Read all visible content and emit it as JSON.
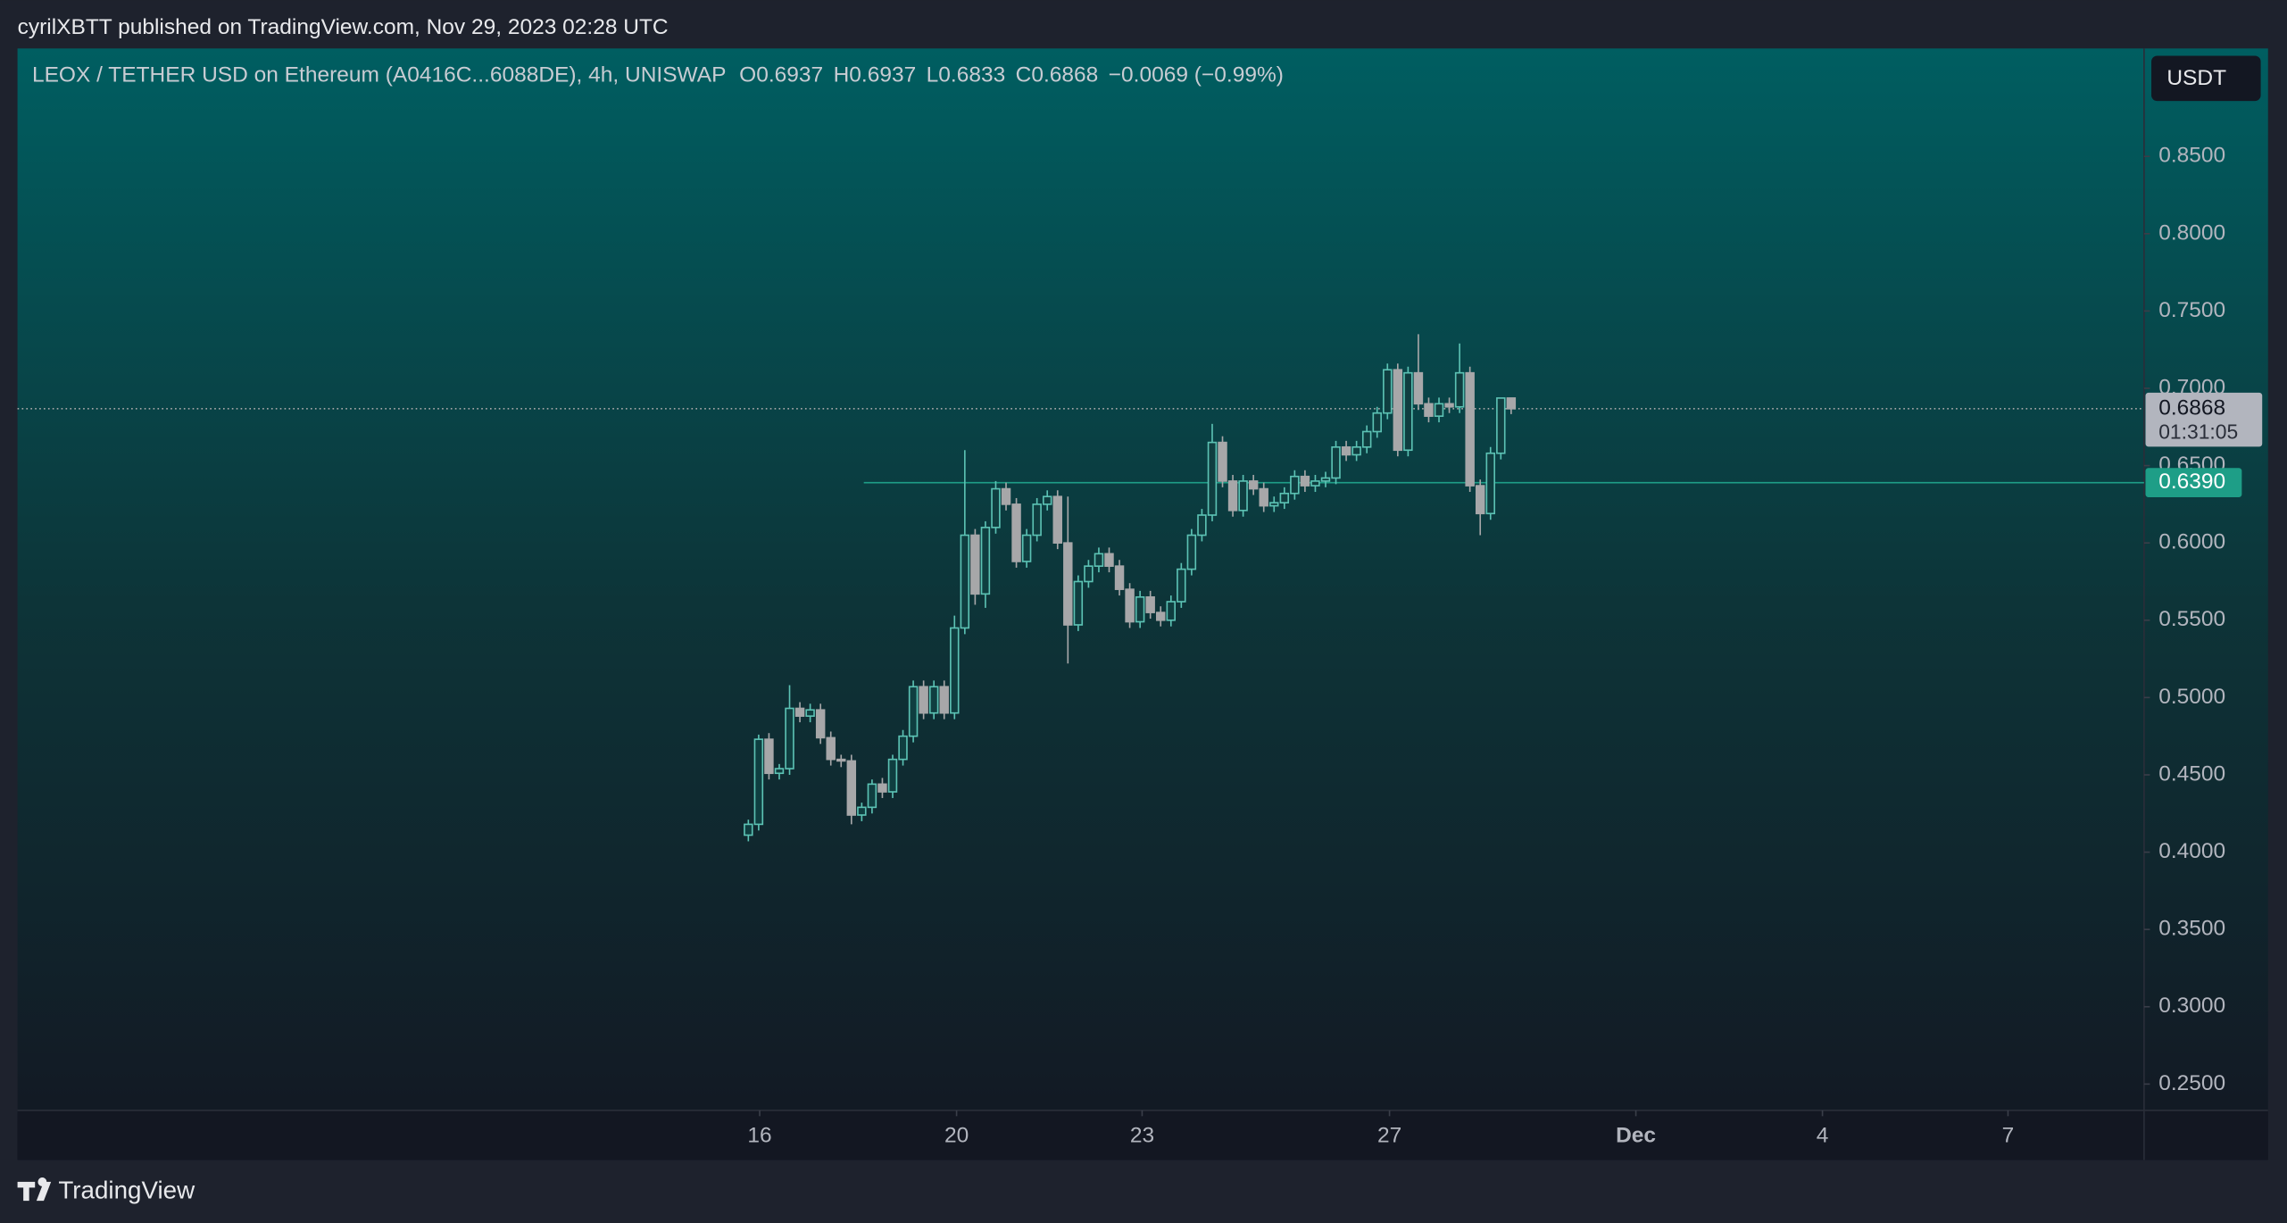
{
  "header": {
    "published": "cyrilXBTT published on TradingView.com, Nov 29, 2023 02:28 UTC",
    "brand": "TradingView"
  },
  "chart_data": {
    "type": "candlestick",
    "title": "LEOX / TETHER USD on Ethereum (A0416C...6088DE), 4h, UNISWAP",
    "ohlc_legend": [
      {
        "key": "O",
        "value": "0.6937"
      },
      {
        "key": "H",
        "value": "0.6937"
      },
      {
        "key": "L",
        "value": "0.6833"
      },
      {
        "key": "C",
        "value": "0.6868"
      }
    ],
    "change": "−0.0069 (−0.99%)",
    "currency": "USDT",
    "up_color": "#5cc2b4",
    "down_color": "#a7a7a9",
    "categories": [
      null,
      null,
      null,
      null,
      null,
      null,
      null,
      null,
      null,
      null,
      null,
      null,
      null,
      null,
      null,
      null,
      null,
      null,
      null,
      null,
      null,
      null,
      null,
      null,
      null,
      null,
      null,
      null,
      null,
      null,
      null,
      null,
      null,
      null,
      null,
      null,
      null,
      null,
      null,
      null,
      null,
      null,
      null,
      null,
      null,
      null,
      null,
      null,
      null,
      null,
      null,
      null,
      null,
      null,
      null,
      null,
      null,
      null,
      null,
      null,
      null,
      null,
      null,
      null,
      null,
      null,
      null,
      null,
      null,
      null,
      null,
      null,
      null,
      null,
      null
    ],
    "open": [
      0.411,
      0.418,
      0.473,
      0.451,
      0.454,
      0.493,
      0.488,
      0.492,
      0.474,
      0.46,
      0.459,
      0.424,
      0.429,
      0.444,
      0.439,
      0.46,
      0.475,
      0.507,
      0.49,
      0.507,
      0.49,
      0.545,
      0.605,
      0.567,
      0.61,
      0.635,
      0.625,
      0.588,
      0.605,
      0.625,
      0.63,
      0.6,
      0.547,
      0.575,
      0.585,
      0.593,
      0.585,
      0.57,
      0.549,
      0.565,
      0.555,
      0.55,
      0.562,
      0.583,
      0.605,
      0.618,
      0.665,
      0.64,
      0.621,
      0.64,
      0.635,
      0.624,
      0.626,
      0.632,
      0.643,
      0.637,
      0.64,
      0.642,
      0.662,
      0.657,
      0.662,
      0.672,
      0.684,
      0.712,
      0.66,
      0.71,
      0.69,
      0.682,
      0.69,
      0.688,
      0.71,
      0.637,
      0.619,
      0.658,
      0.6937
    ],
    "high": [
      0.421,
      0.476,
      0.477,
      0.457,
      0.508,
      0.497,
      0.496,
      0.496,
      0.478,
      0.463,
      0.463,
      0.432,
      0.447,
      0.448,
      0.463,
      0.479,
      0.511,
      0.511,
      0.511,
      0.511,
      0.553,
      0.66,
      0.609,
      0.614,
      0.64,
      0.639,
      0.629,
      0.609,
      0.629,
      0.634,
      0.634,
      0.63,
      0.579,
      0.589,
      0.597,
      0.597,
      0.589,
      0.574,
      0.569,
      0.569,
      0.559,
      0.566,
      0.587,
      0.609,
      0.622,
      0.677,
      0.669,
      0.644,
      0.644,
      0.644,
      0.639,
      0.63,
      0.636,
      0.647,
      0.647,
      0.644,
      0.646,
      0.666,
      0.666,
      0.666,
      0.676,
      0.688,
      0.716,
      0.716,
      0.714,
      0.735,
      0.694,
      0.694,
      0.694,
      0.729,
      0.714,
      0.641,
      0.662,
      0.6937,
      0.6937
    ],
    "low": [
      0.407,
      0.414,
      0.447,
      0.447,
      0.45,
      0.484,
      0.484,
      0.47,
      0.456,
      0.455,
      0.418,
      0.42,
      0.425,
      0.435,
      0.435,
      0.456,
      0.471,
      0.486,
      0.486,
      0.486,
      0.486,
      0.541,
      0.56,
      0.558,
      0.606,
      0.621,
      0.584,
      0.584,
      0.601,
      0.621,
      0.596,
      0.522,
      0.543,
      0.571,
      0.581,
      0.581,
      0.566,
      0.545,
      0.545,
      0.551,
      0.546,
      0.546,
      0.558,
      0.579,
      0.601,
      0.614,
      0.636,
      0.617,
      0.617,
      0.631,
      0.62,
      0.62,
      0.622,
      0.628,
      0.633,
      0.633,
      0.636,
      0.638,
      0.653,
      0.653,
      0.658,
      0.668,
      0.68,
      0.656,
      0.656,
      0.686,
      0.678,
      0.678,
      0.684,
      0.684,
      0.633,
      0.605,
      0.615,
      0.654,
      0.6833
    ],
    "close": [
      0.418,
      0.473,
      0.451,
      0.454,
      0.493,
      0.488,
      0.492,
      0.474,
      0.46,
      0.459,
      0.424,
      0.429,
      0.444,
      0.439,
      0.46,
      0.475,
      0.507,
      0.49,
      0.507,
      0.49,
      0.545,
      0.605,
      0.567,
      0.61,
      0.635,
      0.625,
      0.588,
      0.605,
      0.625,
      0.63,
      0.6,
      0.547,
      0.575,
      0.585,
      0.593,
      0.585,
      0.57,
      0.549,
      0.565,
      0.555,
      0.55,
      0.562,
      0.583,
      0.605,
      0.618,
      0.665,
      0.64,
      0.621,
      0.64,
      0.635,
      0.624,
      0.626,
      0.632,
      0.643,
      0.637,
      0.64,
      0.642,
      0.662,
      0.657,
      0.662,
      0.672,
      0.684,
      0.712,
      0.66,
      0.71,
      0.69,
      0.682,
      0.69,
      0.688,
      0.71,
      0.637,
      0.619,
      0.658,
      0.6937,
      0.6868
    ],
    "xlim": [
      -70.9,
      135.4
    ],
    "xticks": [
      {
        "value": 1.1,
        "label": "16"
      },
      {
        "value": 20.2,
        "label": "20"
      },
      {
        "value": 38.2,
        "label": "23"
      },
      {
        "value": 62.2,
        "label": "27"
      },
      {
        "value": 86.1,
        "label": "Dec"
      },
      {
        "value": 104.2,
        "label": "4"
      },
      {
        "value": 122.2,
        "label": "7"
      }
    ],
    "ylim": [
      0.233,
      0.9198
    ],
    "yticks": [
      {
        "value": 0.25,
        "label": "0.2500"
      },
      {
        "value": 0.3,
        "label": "0.3000"
      },
      {
        "value": 0.35,
        "label": "0.3500"
      },
      {
        "value": 0.4,
        "label": "0.4000"
      },
      {
        "value": 0.45,
        "label": "0.4500"
      },
      {
        "value": 0.5,
        "label": "0.5000"
      },
      {
        "value": 0.55,
        "label": "0.5500"
      },
      {
        "value": 0.6,
        "label": "0.6000"
      },
      {
        "value": 0.65,
        "label": "0.6500"
      },
      {
        "value": 0.7,
        "label": "0.7000"
      },
      {
        "value": 0.75,
        "label": "0.7500"
      },
      {
        "value": 0.8,
        "label": "0.8000"
      },
      {
        "value": 0.85,
        "label": "0.8500"
      }
    ],
    "last_price": {
      "value": 0.6868,
      "label": "0.6868",
      "countdown": "01:31:05"
    },
    "horizontal_line": {
      "value": 0.639,
      "label": "0.6390",
      "start": 11.2,
      "color": "#1e9e87"
    }
  }
}
